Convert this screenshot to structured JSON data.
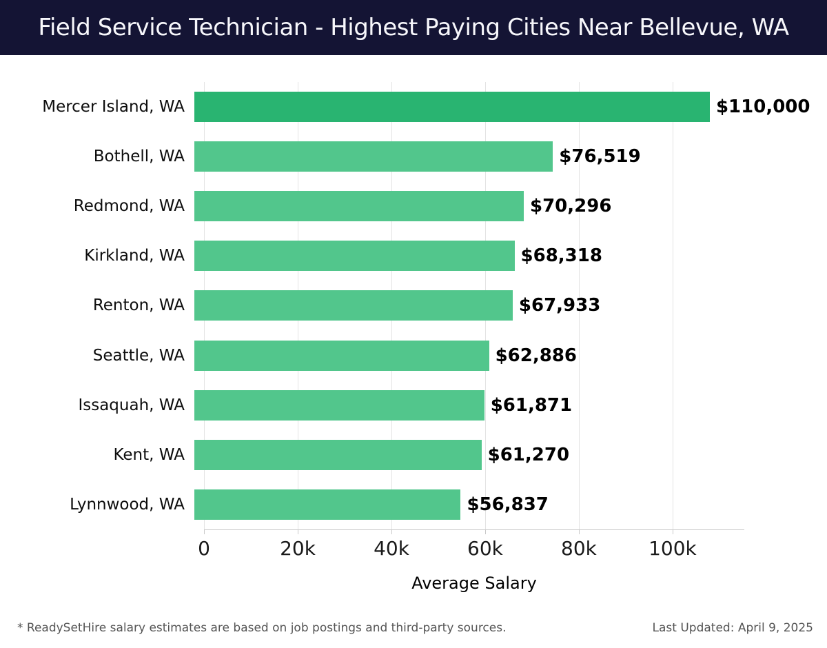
{
  "header": {
    "title": "Field Service Technician - Highest Paying Cities Near Bellevue, WA",
    "bg_color": "#141434",
    "text_color": "#f7f7fb"
  },
  "chart_data": {
    "type": "bar",
    "orientation": "horizontal",
    "title": "Field Service Technician - Highest Paying Cities Near Bellevue, WA",
    "categories": [
      "Mercer Island, WA",
      "Bothell, WA",
      "Redmond, WA",
      "Kirkland, WA",
      "Renton, WA",
      "Seattle, WA",
      "Issaquah, WA",
      "Kent, WA",
      "Lynnwood, WA"
    ],
    "values": [
      110000,
      76519,
      70296,
      68318,
      67933,
      62886,
      61871,
      61270,
      56837
    ],
    "value_labels": [
      "$110,000",
      "$76,519",
      "$70,296",
      "$68,318",
      "$67,933",
      "$62,886",
      "$61,871",
      "$61,270",
      "$56,837"
    ],
    "xlabel": "Average Salary",
    "xlim": [
      0,
      115300
    ],
    "x_ticks": [
      0,
      20000,
      40000,
      60000,
      80000,
      100000
    ],
    "x_tick_labels": [
      "0",
      "20k",
      "40k",
      "60k",
      "80k",
      "100k"
    ],
    "grid": "vertical",
    "legend": "none",
    "highlight_index": 0,
    "colors": {
      "highlight_bar": "#29b471",
      "bar": "#52c68c",
      "grid": "#e3e3e3",
      "axis": "#c9c9c9"
    }
  },
  "footer": {
    "note": "* ReadySetHire salary estimates are based on job postings and third-party sources.",
    "last_updated": "Last Updated: April 9, 2025"
  }
}
